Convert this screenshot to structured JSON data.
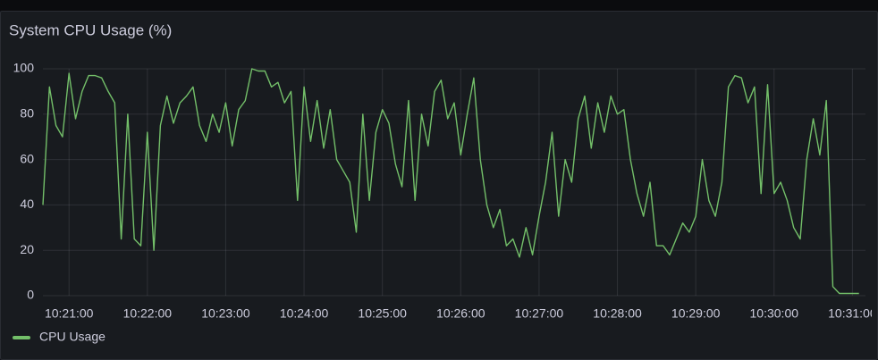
{
  "chart_data": {
    "type": "line",
    "title": "System CPU Usage (%)",
    "x": [
      "10:20:40",
      "10:20:45",
      "10:20:50",
      "10:20:55",
      "10:21:00",
      "10:21:05",
      "10:21:10",
      "10:21:15",
      "10:21:20",
      "10:21:25",
      "10:21:30",
      "10:21:35",
      "10:21:40",
      "10:21:45",
      "10:21:50",
      "10:21:55",
      "10:22:00",
      "10:22:05",
      "10:22:10",
      "10:22:15",
      "10:22:20",
      "10:22:25",
      "10:22:30",
      "10:22:35",
      "10:22:40",
      "10:22:45",
      "10:22:50",
      "10:22:55",
      "10:23:00",
      "10:23:05",
      "10:23:10",
      "10:23:15",
      "10:23:20",
      "10:23:25",
      "10:23:30",
      "10:23:35",
      "10:23:40",
      "10:23:45",
      "10:23:50",
      "10:23:55",
      "10:24:00",
      "10:24:05",
      "10:24:10",
      "10:24:15",
      "10:24:20",
      "10:24:25",
      "10:24:30",
      "10:24:35",
      "10:24:40",
      "10:24:45",
      "10:24:50",
      "10:24:55",
      "10:25:00",
      "10:25:05",
      "10:25:10",
      "10:25:15",
      "10:25:20",
      "10:25:25",
      "10:25:30",
      "10:25:35",
      "10:25:40",
      "10:25:45",
      "10:25:50",
      "10:25:55",
      "10:26:00",
      "10:26:05",
      "10:26:10",
      "10:26:15",
      "10:26:20",
      "10:26:25",
      "10:26:30",
      "10:26:35",
      "10:26:40",
      "10:26:45",
      "10:26:50",
      "10:26:55",
      "10:27:00",
      "10:27:05",
      "10:27:10",
      "10:27:15",
      "10:27:20",
      "10:27:25",
      "10:27:30",
      "10:27:35",
      "10:27:40",
      "10:27:45",
      "10:27:50",
      "10:27:55",
      "10:28:00",
      "10:28:05",
      "10:28:10",
      "10:28:15",
      "10:28:20",
      "10:28:25",
      "10:28:30",
      "10:28:35",
      "10:28:40",
      "10:28:45",
      "10:28:50",
      "10:28:55",
      "10:29:00",
      "10:29:05",
      "10:29:10",
      "10:29:15",
      "10:29:20",
      "10:29:25",
      "10:29:30",
      "10:29:35",
      "10:29:40",
      "10:29:45",
      "10:29:50",
      "10:29:55",
      "10:30:00",
      "10:30:05",
      "10:30:10",
      "10:30:15",
      "10:30:20",
      "10:30:25",
      "10:30:30",
      "10:30:35",
      "10:30:40",
      "10:30:45",
      "10:30:50",
      "10:30:55",
      "10:31:00",
      "10:31:05"
    ],
    "series": [
      {
        "name": "CPU Usage",
        "color": "#73bf69",
        "values": [
          40,
          92,
          75,
          70,
          98,
          78,
          90,
          97,
          97,
          96,
          90,
          85,
          25,
          80,
          25,
          22,
          72,
          20,
          75,
          88,
          76,
          85,
          88,
          92,
          75,
          68,
          80,
          72,
          85,
          66,
          82,
          86,
          100,
          99,
          99,
          92,
          94,
          85,
          90,
          42,
          92,
          68,
          86,
          65,
          82,
          60,
          55,
          50,
          28,
          80,
          42,
          72,
          82,
          76,
          58,
          48,
          86,
          42,
          80,
          66,
          90,
          95,
          78,
          85,
          62,
          80,
          96,
          60,
          40,
          30,
          38,
          22,
          25,
          17,
          30,
          18,
          35,
          50,
          72,
          35,
          60,
          50,
          78,
          88,
          65,
          85,
          72,
          88,
          80,
          82,
          60,
          45,
          35,
          50,
          22,
          22,
          18,
          25,
          32,
          28,
          35,
          60,
          42,
          35,
          50,
          92,
          97,
          96,
          85,
          92,
          45,
          93,
          45,
          50,
          42,
          30,
          25,
          60,
          78,
          62,
          86,
          4,
          1,
          1,
          1,
          1
        ]
      }
    ],
    "xlim": [
      "10:20:40",
      "10:31:10"
    ],
    "xticks": [
      "10:21:00",
      "10:22:00",
      "10:23:00",
      "10:24:00",
      "10:25:00",
      "10:26:00",
      "10:27:00",
      "10:28:00",
      "10:29:00",
      "10:30:00",
      "10:31:00"
    ],
    "ylim": [
      0,
      100
    ],
    "yticks": [
      0,
      20,
      40,
      60,
      80,
      100
    ],
    "grid": true,
    "legend": "bottom-left"
  }
}
